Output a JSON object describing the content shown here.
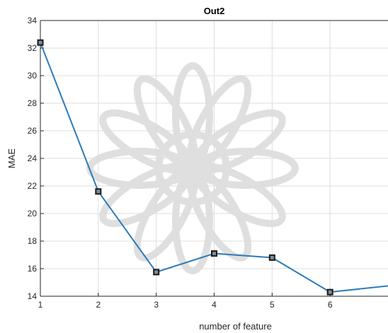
{
  "chart_data": {
    "type": "line",
    "title": "Out2",
    "xlabel": "number of feature",
    "ylabel": "MAE",
    "x": [
      1,
      2,
      3,
      4,
      5,
      6,
      7
    ],
    "series": [
      {
        "values": [
          32.4,
          21.6,
          15.75,
          17.1,
          16.8,
          14.3,
          14.75
        ]
      }
    ],
    "xlim": [
      1,
      7
    ],
    "ylim": [
      14,
      34
    ],
    "xticks": [
      1,
      2,
      3,
      4,
      5,
      6
    ],
    "yticks": [
      14,
      16,
      18,
      20,
      22,
      24,
      26,
      28,
      30,
      32,
      34
    ],
    "grid": true,
    "line_color": "#2b7bba",
    "marker_color": "#1a1a1a"
  }
}
